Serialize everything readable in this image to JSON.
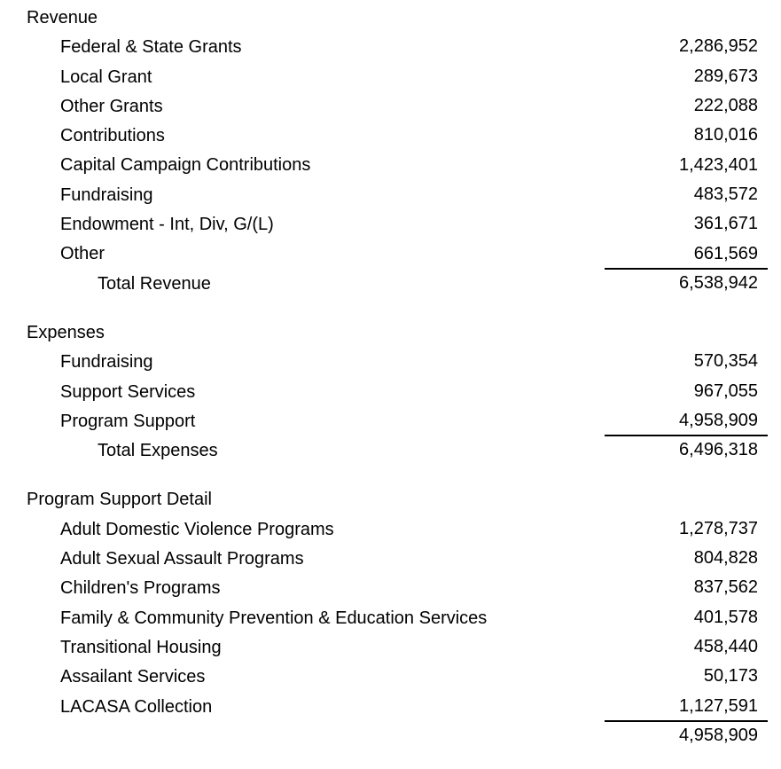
{
  "document": {
    "kind": "financial-statement",
    "background_color": "#ffffff",
    "text_color": "#000000",
    "rule_color": "#000000"
  },
  "sections": [
    {
      "title": "Revenue",
      "rows": [
        {
          "label": "Federal & State Grants",
          "value": "2,286,952",
          "indent": 1,
          "underline": false
        },
        {
          "label": "Local Grant",
          "value": "289,673",
          "indent": 1,
          "underline": false
        },
        {
          "label": "Other Grants",
          "value": "222,088",
          "indent": 1,
          "underline": false
        },
        {
          "label": "Contributions",
          "value": "810,016",
          "indent": 1,
          "underline": false
        },
        {
          "label": "Capital Campaign Contributions",
          "value": "1,423,401",
          "indent": 1,
          "underline": false
        },
        {
          "label": "Fundraising",
          "value": "483,572",
          "indent": 1,
          "underline": false
        },
        {
          "label": "Endowment - Int, Div, G/(L)",
          "value": "361,671",
          "indent": 1,
          "underline": false
        },
        {
          "label": "Other",
          "value": "661,569",
          "indent": 1,
          "underline": true
        },
        {
          "label": "Total Revenue",
          "value": "6,538,942",
          "indent": 2,
          "underline": false
        }
      ]
    },
    {
      "title": "Expenses",
      "rows": [
        {
          "label": "Fundraising",
          "value": "570,354",
          "indent": 1,
          "underline": false
        },
        {
          "label": "Support Services",
          "value": "967,055",
          "indent": 1,
          "underline": false
        },
        {
          "label": "Program Support",
          "value": "4,958,909",
          "indent": 1,
          "underline": true
        },
        {
          "label": "Total Expenses",
          "value": "6,496,318",
          "indent": 2,
          "underline": false
        }
      ]
    },
    {
      "title": "Program Support Detail",
      "rows": [
        {
          "label": "Adult Domestic Violence Programs",
          "value": "1,278,737",
          "indent": 1,
          "underline": false
        },
        {
          "label": "Adult Sexual Assault Programs",
          "value": "804,828",
          "indent": 1,
          "underline": false
        },
        {
          "label": "Children's Programs",
          "value": "837,562",
          "indent": 1,
          "underline": false
        },
        {
          "label": "Family & Community Prevention & Education Services",
          "value": "401,578",
          "indent": 1,
          "underline": false
        },
        {
          "label": "Transitional Housing",
          "value": "458,440",
          "indent": 1,
          "underline": false
        },
        {
          "label": "Assailant Services",
          "value": "50,173",
          "indent": 1,
          "underline": false
        },
        {
          "label": "LACASA Collection",
          "value": "1,127,591",
          "indent": 1,
          "underline": true
        },
        {
          "label": "",
          "value": "4,958,909",
          "indent": 1,
          "underline": false
        }
      ]
    }
  ]
}
